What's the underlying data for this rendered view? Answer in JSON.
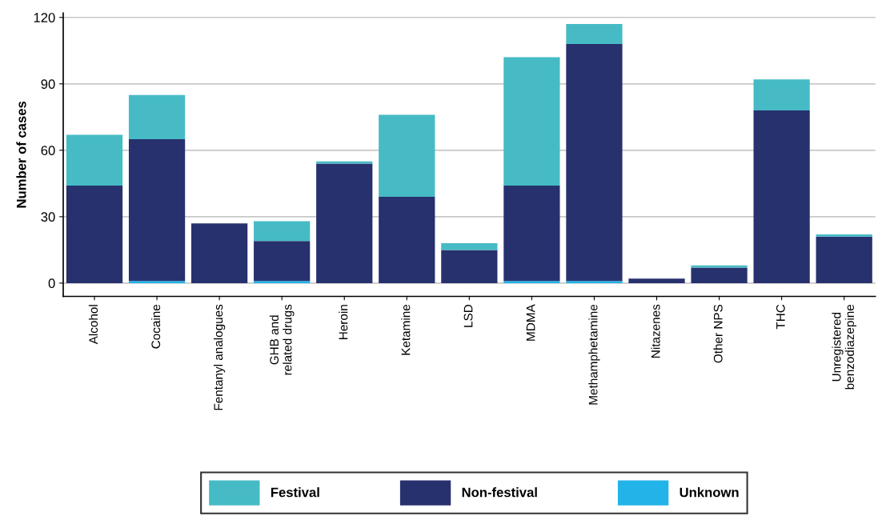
{
  "chart_data": {
    "type": "bar",
    "stacked": true,
    "ylabel": "Number of cases",
    "categories": [
      "Alcohol",
      "Cocaine",
      "Fentanyl analogues",
      "GHB and\nrelated drugs",
      "Heroin",
      "Ketamine",
      "LSD",
      "MDMA",
      "Methamphetamine",
      "Nitazenes",
      "Other NPS",
      "THC",
      "Unregistered\nbenzodiazepine"
    ],
    "series": [
      {
        "name": "Unknown",
        "color": "#22b3e8",
        "values": [
          0,
          1,
          0,
          1,
          0,
          0,
          0,
          1,
          1,
          0,
          0,
          0,
          0
        ]
      },
      {
        "name": "Non-festival",
        "color": "#27316e",
        "values": [
          44,
          64,
          27,
          18,
          54,
          39,
          15,
          43,
          107,
          2,
          7,
          78,
          21
        ]
      },
      {
        "name": "Festival",
        "color": "#46bbc5",
        "values": [
          23,
          20,
          0,
          9,
          1,
          37,
          3,
          58,
          9,
          0,
          1,
          14,
          1
        ]
      }
    ],
    "ylim": [
      -6,
      122
    ],
    "yticks": [
      0,
      30,
      60,
      90,
      120
    ],
    "grid": "y",
    "legend": "bottom"
  }
}
